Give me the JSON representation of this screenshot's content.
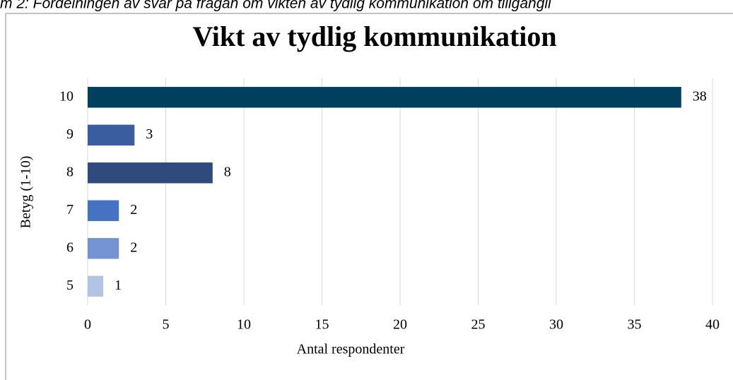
{
  "caption": "m 2: Fördelningen av svar på frågan om vikten av tydlig kommunikation om tillgängli",
  "chart_data": {
    "type": "barh",
    "title": "Vikt av tydlig kommunikation",
    "x_label": "Antal respondenter",
    "y_label": "Betyg (1-10)",
    "categories": [
      "10",
      "9",
      "8",
      "7",
      "6",
      "5"
    ],
    "values": [
      38,
      3,
      8,
      2,
      2,
      1
    ],
    "colors": [
      "#013f5f",
      "#3a5d9f",
      "#2f4b7e",
      "#4572c3",
      "#7394d0",
      "#b1c4e5"
    ],
    "xlim": [
      0,
      40
    ],
    "xticks": [
      0,
      5,
      10,
      15,
      20,
      25,
      30,
      35,
      40
    ],
    "grid": true
  }
}
